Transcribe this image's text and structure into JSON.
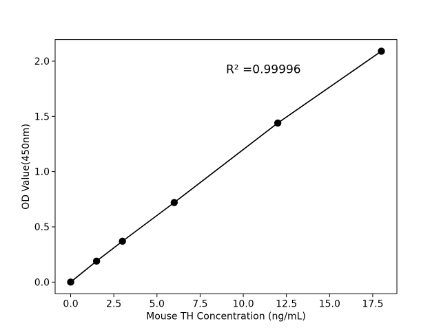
{
  "chart_data": {
    "type": "line",
    "title": "",
    "xlabel": "Mouse TH Concentration (ng/mL)",
    "ylabel": "OD Value(450nm)",
    "x": [
      0.0,
      1.5,
      3.0,
      6.0,
      12.0,
      18.0
    ],
    "y": [
      0.0,
      0.19,
      0.37,
      0.72,
      1.44,
      2.09
    ],
    "xticks": [
      0.0,
      2.5,
      5.0,
      7.5,
      10.0,
      12.5,
      15.0,
      17.5
    ],
    "xtick_labels": [
      "0.0",
      "2.5",
      "5.0",
      "7.5",
      "10.0",
      "12.5",
      "15.0",
      "17.5"
    ],
    "yticks": [
      0.0,
      0.5,
      1.0,
      1.5,
      2.0
    ],
    "ytick_labels": [
      "0.0",
      "0.5",
      "1.0",
      "1.5",
      "2.0"
    ],
    "xlim": [
      -0.9,
      18.9
    ],
    "ylim": [
      -0.105,
      2.195
    ],
    "grid": false,
    "legend": null,
    "marker": "circle",
    "annotation": {
      "text": "R² =0.99996",
      "x": 9.0,
      "y": 1.89
    },
    "colors": {
      "line": "#000000",
      "marker": "#000000",
      "axis": "#000000",
      "background": "#ffffff"
    }
  }
}
